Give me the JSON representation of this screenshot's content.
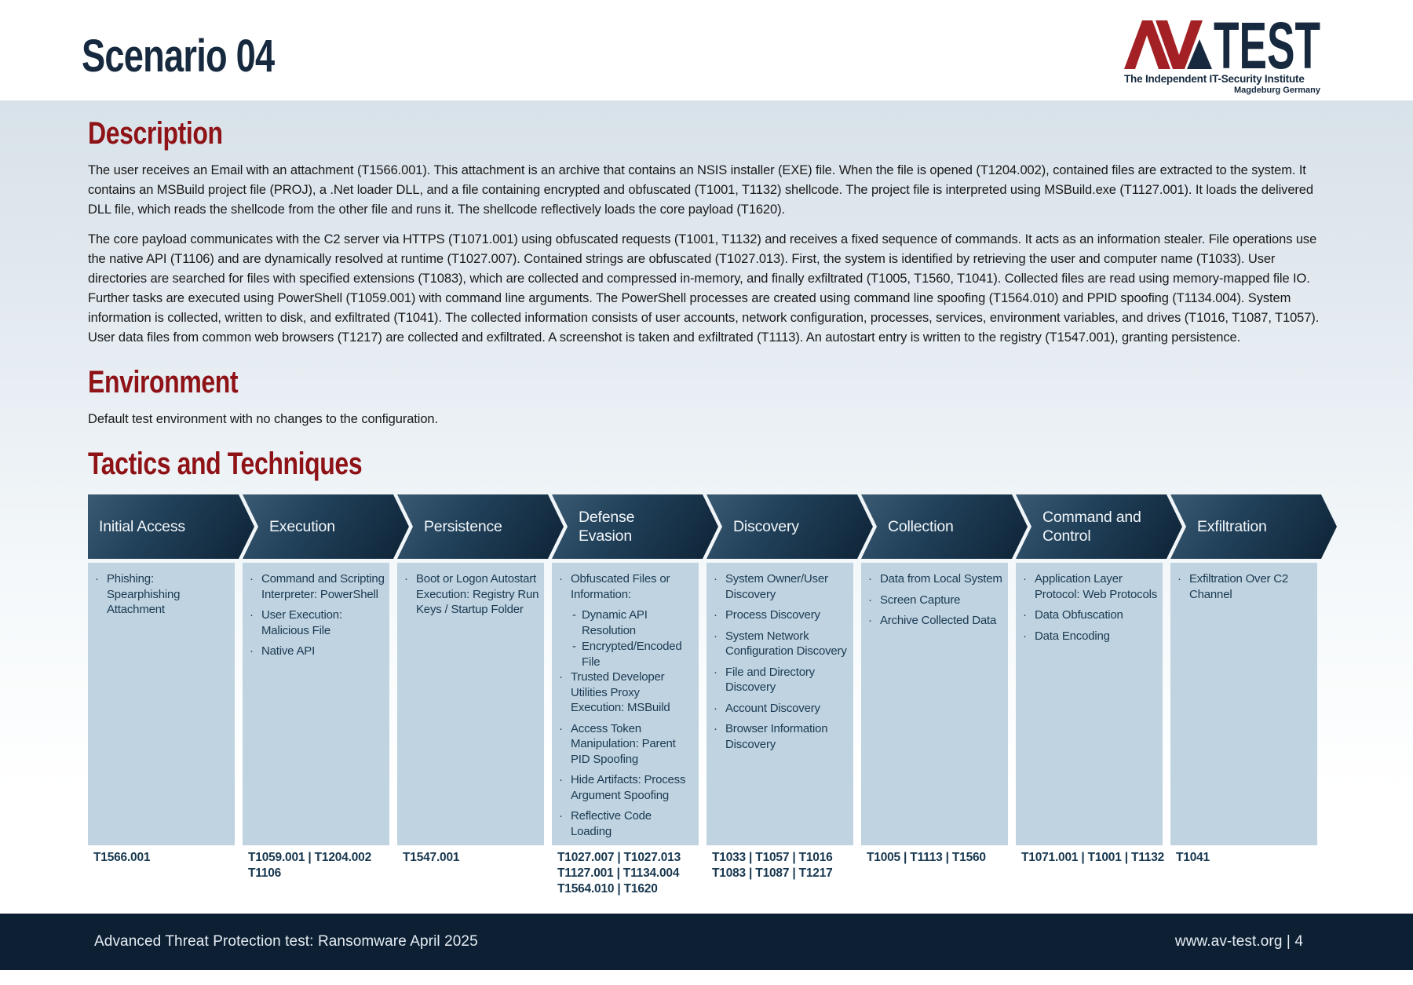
{
  "header": {
    "title": "Scenario 04",
    "logo": {
      "av": "AV",
      "test": "TEST",
      "tagline": "The Independent IT-Security Institute",
      "location": "Magdeburg Germany"
    }
  },
  "description": {
    "heading": "Description",
    "paragraphs": [
      "The user receives an Email with an attachment (T1566.001). This attachment is an archive that contains an NSIS installer (EXE) file. When the file is opened (T1204.002), contained files are extracted to the system. It contains an MSBuild project file (PROJ), a .Net loader DLL, and a file containing encrypted and obfuscated (T1001, T1132) shellcode. The project file is interpreted using MSBuild.exe (T1127.001). It loads the delivered DLL file, which reads the shellcode from the other file and runs it. The shellcode reflectively loads the core payload (T1620).",
      "The core payload communicates with the C2 server via HTTPS (T1071.001) using obfuscated requests (T1001, T1132) and receives a fixed sequence of commands. It acts as an information stealer. File operations use the native API (T1106) and are dynamically resolved at runtime (T1027.007). Contained strings are obfuscated (T1027.013). First, the system is identified by retrieving the user and computer name (T1033). User directories are searched for files with specified extensions (T1083), which are collected and compressed in-memory, and finally exfiltrated (T1005, T1560, T1041). Collected files are read using memory-mapped file IO. Further tasks are executed using PowerShell (T1059.001) with command line arguments. The PowerShell processes are created using command line spoofing (T1564.010) and PPID spoofing (T1134.004). System information is collected, written to disk, and exfiltrated (T1041). The collected information consists of user accounts, network configuration, processes, services, environment variables, and drives (T1016, T1087, T1057). User data files from common web browsers (T1217) are collected and exfiltrated. A screenshot is taken and exfiltrated (T1113). An autostart entry is written to the registry (T1547.001), granting persistence."
    ]
  },
  "environment": {
    "heading": "Environment",
    "text": "Default test environment with no changes to the configuration."
  },
  "tactics": {
    "heading": "Tactics and Techniques",
    "columns": [
      {
        "header": "Initial Access",
        "items": [
          {
            "text": "Phishing: Spearphishing Attachment"
          }
        ],
        "technique_ids": [
          "T1566.001"
        ]
      },
      {
        "header": "Execution",
        "items": [
          {
            "text": "Command and Scripting Interpreter: PowerShell"
          },
          {
            "text": "User Execution: Malicious File"
          },
          {
            "text": "Native API"
          }
        ],
        "technique_ids": [
          "T1059.001 | T1204.002",
          "T1106"
        ]
      },
      {
        "header": "Persistence",
        "items": [
          {
            "text": "Boot or Logon Autostart Execution: Registry Run Keys / Startup Folder"
          }
        ],
        "technique_ids": [
          "T1547.001"
        ]
      },
      {
        "header": "Defense Evasion",
        "items": [
          {
            "text": "Obfuscated Files or Information:",
            "subitems": [
              "Dynamic API Resolution",
              "Encrypted/Encoded File"
            ]
          },
          {
            "text": "Trusted Developer Utilities Proxy Execution: MSBuild"
          },
          {
            "text": "Access Token Manipulation: Parent PID Spoofing"
          },
          {
            "text": "Hide Artifacts: Process Argument Spoofing"
          },
          {
            "text": "Reflective Code Loading"
          }
        ],
        "technique_ids": [
          "T1027.007 | T1027.013",
          "T1127.001 | T1134.004",
          "T1564.010 | T1620"
        ]
      },
      {
        "header": "Discovery",
        "items": [
          {
            "text": "System Owner/User Discovery"
          },
          {
            "text": "Process Discovery"
          },
          {
            "text": "System Network Configuration Discovery"
          },
          {
            "text": "File and Directory Discovery"
          },
          {
            "text": "Account Discovery"
          },
          {
            "text": "Browser Information Discovery"
          }
        ],
        "technique_ids": [
          "T1033 | T1057 | T1016",
          "T1083 | T1087 | T1217"
        ]
      },
      {
        "header": "Collection",
        "items": [
          {
            "text": "Data from Local System"
          },
          {
            "text": "Screen Capture"
          },
          {
            "text": "Archive Collected Data"
          }
        ],
        "technique_ids": [
          "T1005 | T1113 | T1560"
        ]
      },
      {
        "header": "Command and Control",
        "items": [
          {
            "text": "Application Layer Protocol: Web Protocols"
          },
          {
            "text": "Data Obfuscation"
          },
          {
            "text": "Data Encoding"
          }
        ],
        "technique_ids": [
          "T1071.001 | T1001 | T1132"
        ]
      },
      {
        "header": "Exfiltration",
        "items": [
          {
            "text": "Exfiltration Over C2 Channel"
          }
        ],
        "technique_ids": [
          "T1041"
        ]
      }
    ]
  },
  "footer": {
    "left": "Advanced Threat Protection test: Ransomware April 2025",
    "right": "www.av-test.org | 4"
  },
  "colors": {
    "accent_red": "#8e1216",
    "title_navy": "#16293e",
    "logo_red": "#a32024",
    "chevron_dark": "#0e2336",
    "cell_blue": "#bfd3e0",
    "footer_navy": "#0c1f33"
  }
}
